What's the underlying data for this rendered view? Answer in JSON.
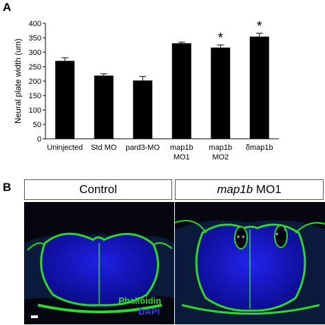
{
  "panels": {
    "a_label": "A",
    "b_label": "B"
  },
  "chart_data": {
    "type": "bar",
    "ylabel": "Neural plate width (um)",
    "ylim": [
      0,
      400
    ],
    "yticks": [
      0,
      50,
      100,
      150,
      200,
      250,
      300,
      350,
      400
    ],
    "categories": [
      [
        "Uninjected"
      ],
      [
        "Std MO"
      ],
      [
        "pard3-MO"
      ],
      [
        "map1b",
        "MO1"
      ],
      [
        "map1b",
        "MO2"
      ],
      [
        "δmap1b"
      ]
    ],
    "values": [
      270,
      219,
      202,
      331,
      316,
      354
    ],
    "errors": [
      11,
      6,
      14,
      4,
      9,
      12
    ],
    "significance": [
      "",
      "",
      "",
      "",
      "*",
      "*"
    ],
    "bar_color": "#000000"
  },
  "micrographs": {
    "control_label": "Control",
    "treated_label_italic": "map1b",
    "treated_label_rest": " MO1",
    "stain_green": "Phalloidin",
    "stain_blue": "DAPI",
    "colors": {
      "green": "#2ed82a",
      "blue": "#1a1ae0",
      "asterisk": "#ffffff",
      "asterisk_blue": "#8ab4ff"
    }
  }
}
